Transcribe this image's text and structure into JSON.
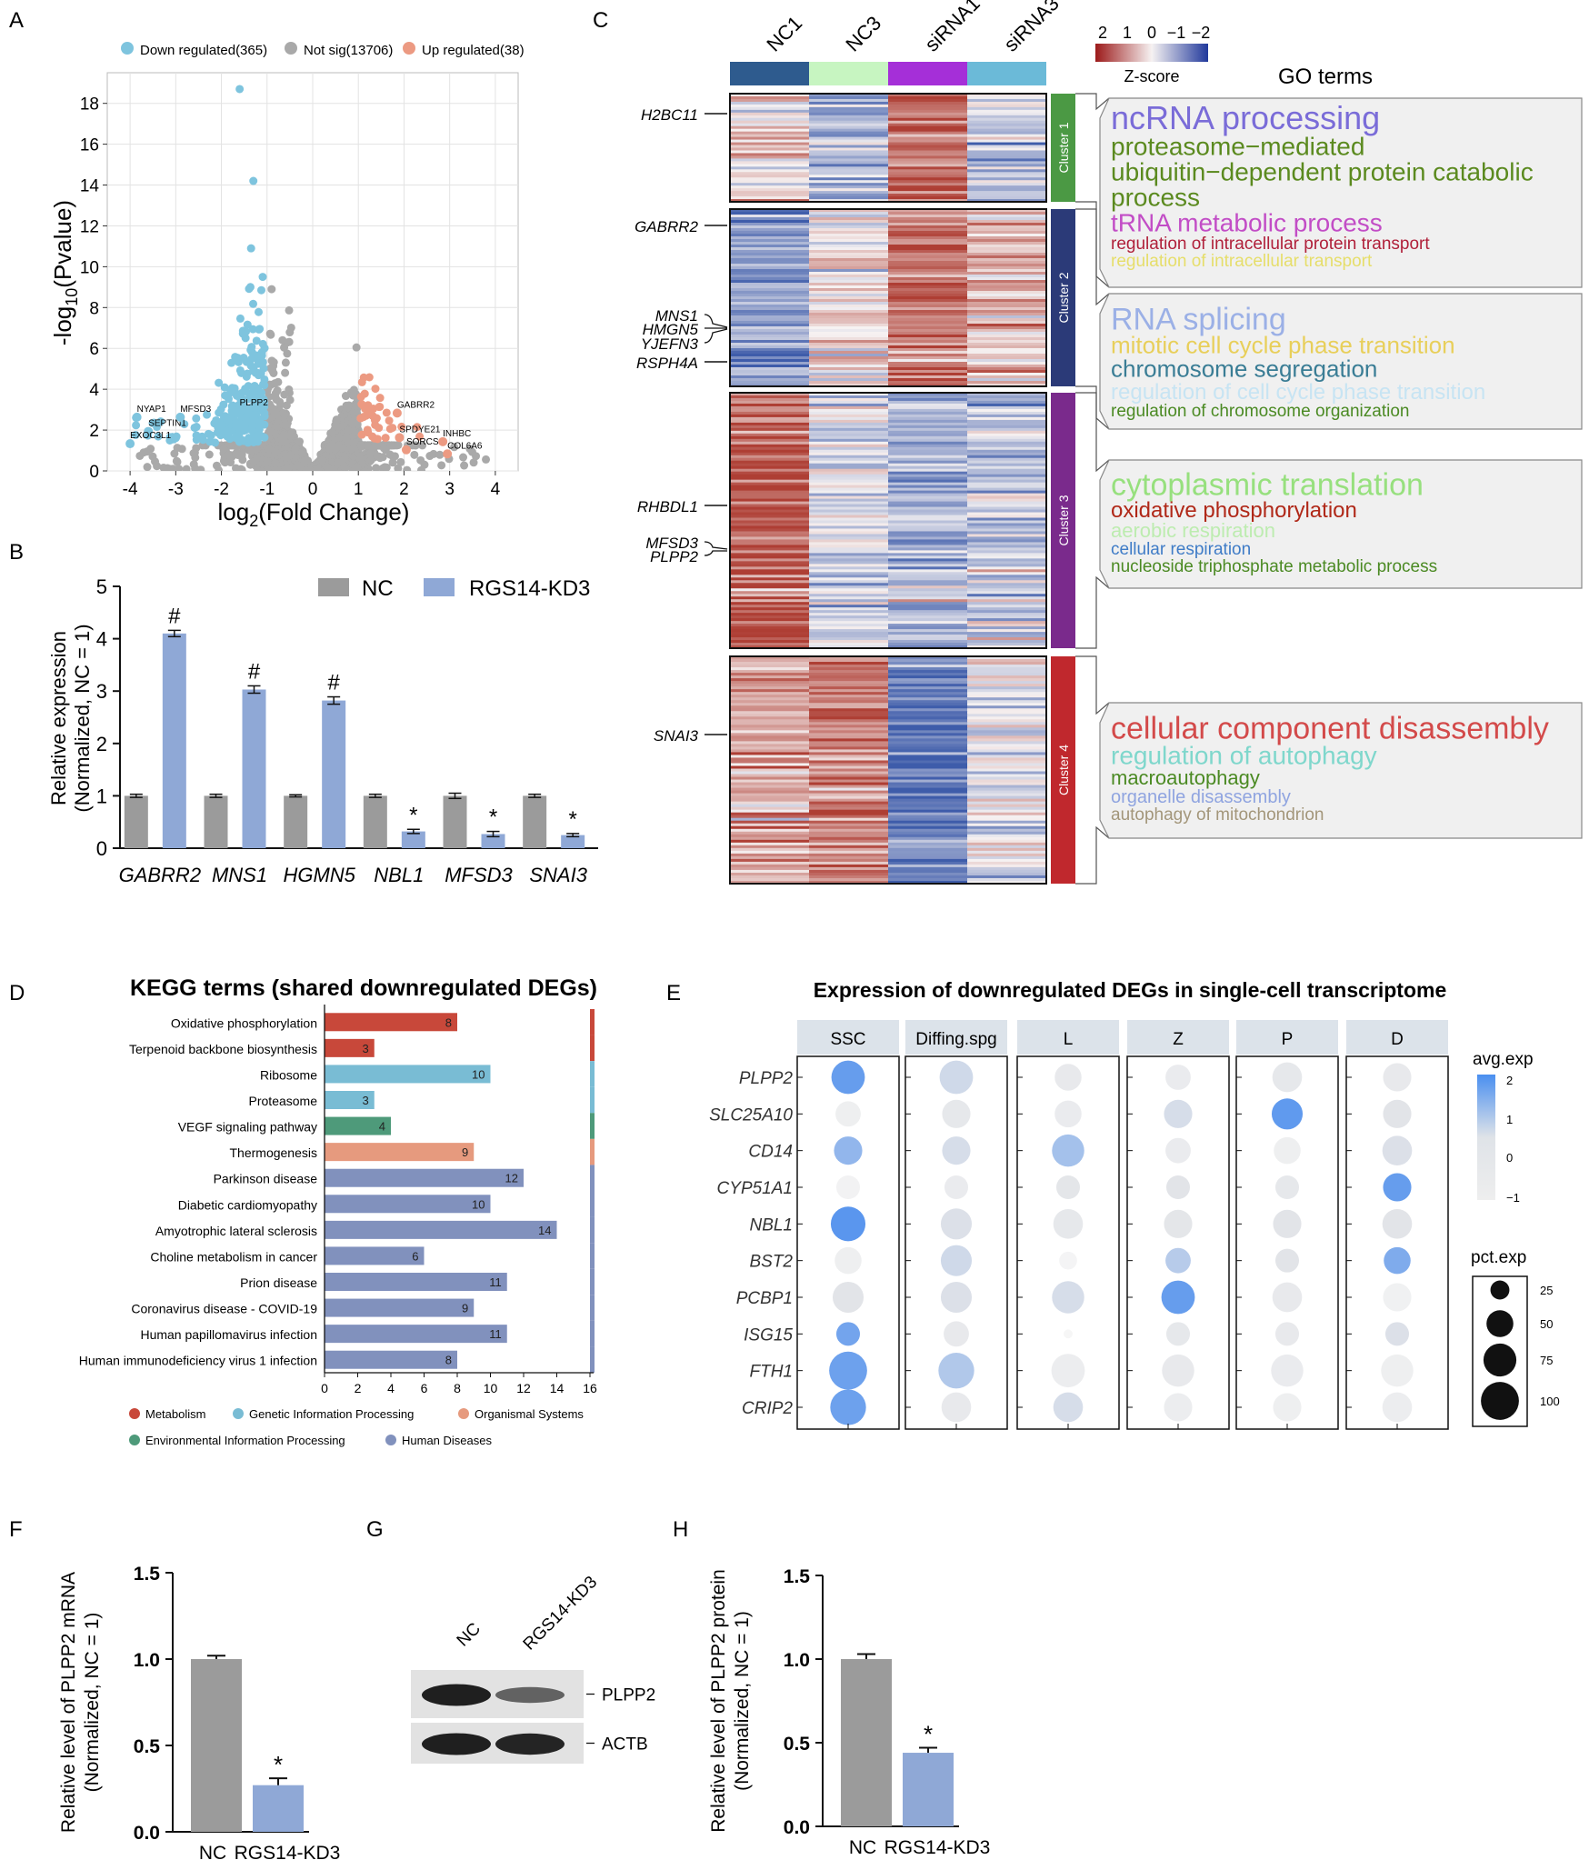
{
  "panels": {
    "A": "A",
    "B": "B",
    "C": "C",
    "D": "D",
    "E": "E",
    "F": "F",
    "G": "G",
    "H": "H"
  },
  "colors": {
    "down": "#7ec4de",
    "up": "#ec9a82",
    "ns": "#a9a9a9",
    "nc_bar": "#9b9b9b",
    "kd_bar": "#8fa8d6"
  },
  "chart_data": [
    {
      "id": "A",
      "type": "scatter",
      "title": "",
      "xlabel": "log2(Fold Change)",
      "ylabel": "-log10(Pvalue)",
      "xlim": [
        -4.5,
        4.5
      ],
      "ylim": [
        0,
        19.5
      ],
      "xticks": [
        -4,
        -3,
        -2,
        -1,
        0,
        1,
        2,
        3,
        4
      ],
      "yticks": [
        0,
        2,
        4,
        6,
        8,
        10,
        12,
        14,
        16,
        18
      ],
      "legend": [
        {
          "key": "down",
          "label": "Down regulated(365)"
        },
        {
          "key": "ns",
          "label": "Not sig(13706)"
        },
        {
          "key": "up",
          "label": "Up regulated(38)"
        }
      ],
      "labeled_genes": [
        {
          "gene": "NYAP1",
          "x": -3.85,
          "y": 2.9,
          "group": "down"
        },
        {
          "gene": "SEPTIN1",
          "x": -3.6,
          "y": 2.2,
          "group": "down"
        },
        {
          "gene": "MFSD3",
          "x": -2.9,
          "y": 2.9,
          "group": "down"
        },
        {
          "gene": "EXOC3L1",
          "x": -4.0,
          "y": 1.6,
          "group": "down"
        },
        {
          "gene": "PLPP2",
          "x": -1.6,
          "y": 3.2,
          "group": "down"
        },
        {
          "gene": "GABRR2",
          "x": 1.85,
          "y": 3.1,
          "group": "up"
        },
        {
          "gene": "SPDYE21",
          "x": 1.9,
          "y": 1.9,
          "group": "up"
        },
        {
          "gene": "SORCS1",
          "x": 2.05,
          "y": 1.3,
          "group": "up"
        },
        {
          "gene": "INHBC",
          "x": 2.85,
          "y": 1.7,
          "group": "up"
        },
        {
          "gene": "COL6A6",
          "x": 2.95,
          "y": 1.1,
          "group": "up"
        }
      ],
      "notable_points": [
        {
          "x": -1.6,
          "y": 18.7
        },
        {
          "x": -1.3,
          "y": 14.2
        },
        {
          "x": -1.35,
          "y": 10.9
        },
        {
          "x": -0.9,
          "y": 8.9
        }
      ]
    },
    {
      "id": "B",
      "type": "bar",
      "xlabel": "",
      "ylabel": "Relative expression (Normalized, NC = 1)",
      "ylabel_lines": [
        "Relative expression",
        "(Normalized, NC = 1)"
      ],
      "ylim": [
        0,
        5
      ],
      "yticks": [
        0,
        1,
        2,
        3,
        4,
        5
      ],
      "categories": [
        "GABRR2",
        "MNS1",
        "HGMN5",
        "NBL1",
        "MFSD3",
        "SNAI3"
      ],
      "series": [
        {
          "name": "NC",
          "values": [
            1,
            1,
            1,
            1,
            1,
            1
          ],
          "err": [
            0.03,
            0.03,
            0.02,
            0.03,
            0.05,
            0.03
          ]
        },
        {
          "name": "RGS14-KD3",
          "values": [
            4.1,
            3.03,
            2.82,
            0.32,
            0.27,
            0.25
          ],
          "err": [
            0.06,
            0.07,
            0.07,
            0.04,
            0.05,
            0.03
          ]
        }
      ],
      "marks": [
        "#",
        "#",
        "#",
        "*",
        "*",
        "*"
      ]
    },
    {
      "id": "C",
      "type": "heatmap",
      "columns": [
        "NC1",
        "NC3",
        "siRNA1",
        "siRNA3"
      ],
      "column_colors": [
        "#2e5b8e",
        "#c7f5c1",
        "#a52fd8",
        "#6bbad8"
      ],
      "legend_title": "Z-score",
      "legend_ticks": [
        "2",
        "1",
        "0",
        "−1",
        "−2"
      ],
      "go_title": "GO terms",
      "clusters": [
        {
          "name": "Cluster 1",
          "color": "#4b9944",
          "pattern": [
            0.3,
            -0.8,
            1.5,
            -0.4
          ],
          "genes": [
            "H2BC11"
          ],
          "terms": [
            {
              "text": "ncRNA processing",
              "color": "#7a6cd8",
              "size": 36
            },
            {
              "text": "proteasome−mediated",
              "color": "#5b8a1f",
              "size": 28
            },
            {
              "text": "ubiquitin−dependent protein catabolic",
              "color": "#5b8a1f",
              "size": 28
            },
            {
              "text": "process",
              "color": "#5b8a1f",
              "size": 28
            },
            {
              "text": "tRNA metabolic process",
              "color": "#c24dc6",
              "size": 28
            },
            {
              "text": "regulation of intracellular protein transport",
              "color": "#b0203a",
              "size": 19
            },
            {
              "text": "regulation of intracellular transport",
              "color": "#e6de6a",
              "size": 19
            }
          ]
        },
        {
          "name": "Cluster 2",
          "color": "#2b3a78",
          "pattern": [
            -1.2,
            0.2,
            1.4,
            0.6
          ],
          "genes": [
            "GABRR2",
            "MNS1",
            "HMGN5",
            "YJEFN3",
            "RSPH4A"
          ],
          "terms": [
            {
              "text": "RNA splicing",
              "color": "#9bb0e6",
              "size": 34
            },
            {
              "text": "mitotic cell cycle phase transition",
              "color": "#e8cf5a",
              "size": 26
            },
            {
              "text": "chromosome segregation",
              "color": "#3a7d95",
              "size": 26
            },
            {
              "text": "regulation of cell cycle phase transition",
              "color": "#c7e4f3",
              "size": 24
            },
            {
              "text": "regulation of chromosome organization",
              "color": "#4b8a23",
              "size": 19
            }
          ]
        },
        {
          "name": "Cluster 3",
          "color": "#7a2a8c",
          "pattern": [
            1.7,
            -0.3,
            -0.8,
            -0.5
          ],
          "genes": [
            "RHBDL1",
            "MFSD3",
            "PLPP2"
          ],
          "terms": [
            {
              "text": "cytoplasmic translation",
              "color": "#97e07e",
              "size": 34
            },
            {
              "text": "oxidative phosphorylation",
              "color": "#b02818",
              "size": 24
            },
            {
              "text": "aerobic respiration",
              "color": "#bdecb0",
              "size": 22
            },
            {
              "text": "cellular respiration",
              "color": "#3f7cc7",
              "size": 19
            },
            {
              "text": "nucleoside triphosphate metabolic process",
              "color": "#4b8a23",
              "size": 19
            }
          ]
        },
        {
          "name": "Cluster 4",
          "color": "#c0282d",
          "pattern": [
            0.8,
            1.2,
            -1.6,
            -0.2
          ],
          "genes": [
            "SNAI3"
          ],
          "terms": [
            {
              "text": "cellular component disassembly",
              "color": "#d34a4a",
              "size": 34
            },
            {
              "text": "regulation of autophagy",
              "color": "#7fd7cc",
              "size": 28
            },
            {
              "text": "macroautophagy",
              "color": "#4b8a23",
              "size": 22
            },
            {
              "text": "organelle disassembly",
              "color": "#8fa4e0",
              "size": 20
            },
            {
              "text": "autophagy of mitochondrion",
              "color": "#a3967a",
              "size": 19
            }
          ]
        }
      ]
    },
    {
      "id": "D",
      "type": "bar",
      "orientation": "horizontal",
      "title": "KEGG terms (shared downregulated DEGs)",
      "xlim": [
        0,
        16
      ],
      "xticks": [
        0,
        2,
        4,
        6,
        8,
        10,
        12,
        14,
        16
      ],
      "categories": [
        "Oxidative phosphorylation",
        "Terpenoid backbone biosynthesis",
        "Ribosome",
        "Proteasome",
        "VEGF signaling pathway",
        "Thermogenesis",
        "Parkinson disease",
        "Diabetic cardiomyopathy",
        "Amyotrophic lateral sclerosis",
        "Choline metabolism in cancer",
        "Prion disease",
        "Coronavirus disease - COVID-19",
        "Human papillomavirus infection",
        "Human immunodeficiency virus 1 infection"
      ],
      "values": [
        8,
        3,
        10,
        3,
        4,
        9,
        12,
        10,
        14,
        6,
        11,
        9,
        11,
        8
      ],
      "groups": [
        "Metabolism",
        "Metabolism",
        "Genetic Information Processing",
        "Genetic Information Processing",
        "Environmental Information Processing",
        "Organismal Systems",
        "Human Diseases",
        "Human Diseases",
        "Human Diseases",
        "Human Diseases",
        "Human Diseases",
        "Human Diseases",
        "Human Diseases",
        "Human Diseases"
      ],
      "legend": [
        {
          "label": "Metabolism",
          "color": "#c8483a"
        },
        {
          "label": "Genetic Information Processing",
          "color": "#79bcd4"
        },
        {
          "label": "Organismal Systems",
          "color": "#e69a7e"
        },
        {
          "label": "Environmental Information Processing",
          "color": "#4e9a7a"
        },
        {
          "label": "Human Diseases",
          "color": "#8191bd"
        }
      ]
    },
    {
      "id": "E",
      "type": "scatter",
      "subtype": "dotplot",
      "title": "Expression of downregulated DEGs in single-cell transcriptome",
      "columns": [
        "SSC",
        "Diffing.spg",
        "L",
        "Z",
        "P",
        "D"
      ],
      "genes": [
        "PLPP2",
        "SLC25A10",
        "CD14",
        "CYP51A1",
        "NBL1",
        "BST2",
        "PCBP1",
        "ISG15",
        "FTH1",
        "CRIP2"
      ],
      "avg_exp": [
        [
          2.0,
          0.3,
          -0.3,
          -0.4,
          -0.2,
          -0.3
        ],
        [
          -0.6,
          -0.2,
          -0.4,
          0.2,
          2.1,
          0.0
        ],
        [
          1.3,
          0.2,
          1.0,
          -0.4,
          -0.6,
          0.1
        ],
        [
          -0.8,
          -0.4,
          -0.1,
          0.0,
          -0.2,
          2.0
        ],
        [
          2.2,
          0.1,
          -0.2,
          -0.1,
          0.0,
          0.0
        ],
        [
          -0.6,
          0.3,
          -0.9,
          0.7,
          0.0,
          1.6
        ],
        [
          0.0,
          0.1,
          0.2,
          2.0,
          -0.3,
          -0.7
        ],
        [
          1.8,
          -0.3,
          -1.0,
          -0.2,
          -0.3,
          0.1
        ],
        [
          1.9,
          0.8,
          -0.5,
          -0.3,
          -0.4,
          -0.6
        ],
        [
          1.9,
          -0.3,
          0.2,
          -0.5,
          -0.6,
          -0.5
        ]
      ],
      "pct_exp": [
        [
          70,
          70,
          45,
          40,
          55,
          50
        ],
        [
          40,
          50,
          45,
          50,
          60,
          50
        ],
        [
          50,
          50,
          65,
          40,
          45,
          55
        ],
        [
          35,
          35,
          35,
          35,
          35,
          50
        ],
        [
          75,
          60,
          55,
          50,
          50,
          55
        ],
        [
          45,
          60,
          20,
          40,
          35,
          45
        ],
        [
          60,
          60,
          65,
          70,
          55,
          50
        ],
        [
          35,
          40,
          5,
          35,
          35,
          35
        ],
        [
          90,
          80,
          70,
          65,
          65,
          65
        ],
        [
          80,
          55,
          55,
          50,
          50,
          55
        ]
      ],
      "color_legend_title": "avg.exp",
      "color_ticks": [
        "2",
        "1",
        "0",
        "−1"
      ],
      "size_legend_title": "pct.exp",
      "size_ticks": [
        "25",
        "50",
        "75",
        "100"
      ]
    },
    {
      "id": "F",
      "type": "bar",
      "ylabel_lines": [
        "Relative level of PLPP2 mRNA",
        "(Normalized, NC = 1)"
      ],
      "ylim": [
        0,
        1.5
      ],
      "yticks": [
        "0.0",
        "0.5",
        "1.0",
        "1.5"
      ],
      "categories": [
        "NC",
        "RGS14-KD3"
      ],
      "values": [
        1.0,
        0.27
      ],
      "err": [
        0.02,
        0.04
      ],
      "marks": [
        "",
        "*"
      ]
    },
    {
      "id": "G",
      "type": "table",
      "subtype": "western-blot",
      "lanes": [
        "NC",
        "RGS14-KD3"
      ],
      "bands": [
        "PLPP2",
        "ACTB"
      ],
      "intensity": [
        [
          1.0,
          0.45
        ],
        [
          1.0,
          0.95
        ]
      ]
    },
    {
      "id": "H",
      "type": "bar",
      "ylabel_lines": [
        "Relative level of PLPP2 protein",
        "(Normalized, NC = 1)"
      ],
      "ylim": [
        0,
        1.5
      ],
      "yticks": [
        "0.0",
        "0.5",
        "1.0",
        "1.5"
      ],
      "categories": [
        "NC",
        "RGS14-KD3"
      ],
      "values": [
        1.0,
        0.44
      ],
      "err": [
        0.03,
        0.03
      ],
      "marks": [
        "",
        "*"
      ]
    }
  ]
}
